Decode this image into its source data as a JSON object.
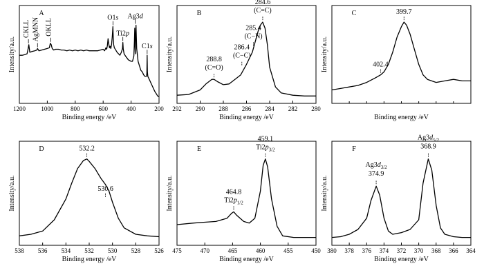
{
  "chart_data": [
    {
      "type": "line",
      "panel_label": "A",
      "xlabel": "Binding energy /eV",
      "ylabel": "Intensity/a.u.",
      "xlim": [
        1200,
        200
      ],
      "ylim": [
        0,
        100
      ],
      "xticks": [
        "1200",
        "1000",
        "800",
        "600",
        "400",
        "200"
      ],
      "series": [
        {
          "x": [
            1200,
            1180,
            1160,
            1145,
            1140,
            1132,
            1125,
            1110,
            1090,
            1075,
            1070,
            1060,
            1040,
            1020,
            1000,
            985,
            978,
            972,
            965,
            955,
            940,
            920,
            900,
            880,
            860,
            840,
            820,
            800,
            780,
            760,
            740,
            720,
            700,
            680,
            660,
            640,
            620,
            600,
            590,
            580,
            575,
            570,
            565,
            560,
            555,
            550,
            545,
            540,
            535,
            532,
            530,
            528,
            525,
            520,
            510,
            500,
            490,
            480,
            470,
            462,
            459,
            456,
            450,
            440,
            420,
            400,
            390,
            380,
            376,
            374,
            372,
            370,
            368,
            365,
            360,
            350,
            340,
            330,
            320,
            310,
            300,
            290,
            287,
            285,
            283,
            280,
            270,
            260,
            250,
            240,
            230,
            220,
            210,
            200
          ],
          "y": [
            56,
            56,
            57,
            58,
            62,
            70,
            60,
            61,
            62,
            63,
            65,
            62,
            63,
            64,
            65,
            66,
            72,
            70,
            65,
            63,
            64,
            64,
            63,
            63,
            62,
            63,
            62,
            63,
            62,
            63,
            62,
            63,
            62,
            62,
            62,
            62,
            63,
            64,
            62,
            66,
            64,
            69,
            78,
            71,
            66,
            68,
            65,
            70,
            80,
            88,
            94,
            82,
            70,
            66,
            63,
            60,
            58,
            56,
            60,
            65,
            73,
            64,
            58,
            55,
            50,
            48,
            48,
            55,
            75,
            92,
            70,
            58,
            80,
            96,
            65,
            48,
            42,
            36,
            34,
            30,
            28,
            28,
            32,
            56,
            34,
            28,
            24,
            20,
            16,
            12,
            8,
            5,
            2,
            1
          ]
        }
      ],
      "annotations": [
        {
          "text": "CKLL",
          "x": 1135,
          "y": 70
        },
        {
          "text": "AgMNN",
          "x": 1070,
          "y": 65
        },
        {
          "text": "OKLL",
          "x": 975,
          "y": 72
        },
        {
          "text": "O1",
          "italic": "s",
          "x": 530,
          "y": 94
        },
        {
          "text": "Ti2",
          "italic": "p",
          "x": 459,
          "y": 73
        },
        {
          "text": "Ag3",
          "italic": "d",
          "x": 370,
          "y": 96
        },
        {
          "text": "C1",
          "italic": "s",
          "x": 285,
          "y": 56
        }
      ]
    },
    {
      "type": "line",
      "panel_label": "B",
      "xlabel": "Binding energy /eV",
      "ylabel": "Intensity/a.u.",
      "xlim": [
        292,
        280
      ],
      "ylim": [
        0,
        100
      ],
      "xticks": [
        "292",
        "290",
        "288",
        "286",
        "284",
        "282",
        "280"
      ],
      "series": [
        {
          "x": [
            292,
            291,
            290,
            289.5,
            289,
            288.8,
            288.5,
            288,
            287.5,
            287,
            286.5,
            286,
            285.5,
            285,
            284.8,
            284.6,
            284.4,
            284.2,
            284,
            283.5,
            283,
            282,
            281,
            280
          ],
          "y": [
            3,
            4,
            10,
            18,
            24,
            24,
            21,
            17,
            18,
            24,
            30,
            44,
            60,
            88,
            96,
            100,
            92,
            70,
            40,
            14,
            6,
            3,
            2,
            2
          ]
        }
      ],
      "annotations": [
        {
          "text": "288.8",
          "sub": "(C=O)",
          "x": 288.8,
          "y": 24
        },
        {
          "text": "286.4",
          "sub": "(C−C)",
          "x": 286.4,
          "y": 40
        },
        {
          "text": "285.4",
          "sub": "(C−N)",
          "x": 285.4,
          "y": 66
        },
        {
          "text": "284.6",
          "sub": "(C=C)",
          "x": 284.6,
          "y": 100
        }
      ]
    },
    {
      "type": "line",
      "panel_label": "C",
      "xlabel": "Binding energy /eV",
      "ylabel": "Intensity/a.u.",
      "xlim": [
        408,
        392
      ],
      "ylim": [
        0,
        100
      ],
      "xticks": [],
      "series": [
        {
          "x": [
            408,
            407,
            406,
            405,
            404,
            403,
            402.4,
            402,
            401.5,
            401,
            400.5,
            400,
            399.7,
            399.4,
            399,
            398.5,
            398,
            397.5,
            397,
            396,
            395,
            394,
            393,
            392
          ],
          "y": [
            10,
            12,
            14,
            16,
            20,
            26,
            30,
            34,
            44,
            60,
            80,
            94,
            100,
            96,
            84,
            64,
            44,
            30,
            24,
            20,
            22,
            24,
            22,
            22
          ]
        }
      ],
      "annotations": [
        {
          "text": "402.4",
          "x": 402.4,
          "y": 30
        },
        {
          "text": "399.7",
          "x": 399.7,
          "y": 100
        }
      ]
    },
    {
      "type": "line",
      "panel_label": "D",
      "xlabel": "Binding energy /eV",
      "ylabel": "Intensity/a.u.",
      "xlim": [
        538,
        526
      ],
      "ylim": [
        0,
        100
      ],
      "xticks": [
        "538",
        "536",
        "534",
        "532",
        "530",
        "528",
        "526"
      ],
      "series": [
        {
          "x": [
            538,
            537,
            536,
            535,
            534,
            533.5,
            533,
            532.5,
            532.2,
            532,
            531.5,
            531,
            530.6,
            530.3,
            530,
            529.5,
            529,
            528,
            527,
            526
          ],
          "y": [
            4,
            6,
            10,
            24,
            50,
            70,
            88,
            98,
            100,
            97,
            88,
            76,
            68,
            60,
            46,
            26,
            14,
            6,
            4,
            3
          ]
        }
      ],
      "annotations": [
        {
          "text": "532.2",
          "x": 532.2,
          "y": 100
        },
        {
          "text": "530.6",
          "x": 530.6,
          "y": 50
        }
      ]
    },
    {
      "type": "line",
      "panel_label": "E",
      "xlabel": "Binding energy /eV",
      "ylabel": "Intensity/a.u.",
      "xlim": [
        475,
        450
      ],
      "ylim": [
        0,
        100
      ],
      "xticks": [
        "475",
        "470",
        "465",
        "460",
        "455",
        "450"
      ],
      "series": [
        {
          "x": [
            475,
            472,
            470,
            468,
            466,
            465.2,
            464.8,
            464.3,
            463,
            462,
            461,
            460,
            459.5,
            459.1,
            458.7,
            458,
            457,
            456,
            454,
            452,
            450
          ],
          "y": [
            18,
            20,
            21,
            22,
            26,
            32,
            34,
            30,
            22,
            20,
            26,
            60,
            92,
            100,
            90,
            50,
            16,
            4,
            2,
            2,
            2
          ]
        }
      ],
      "annotations": [
        {
          "text": "464.8",
          "sub": "Ti2",
          "italic": "p",
          "subscript": "1/2",
          "x": 464.8,
          "y": 34
        },
        {
          "text": "459.1",
          "sub": "Ti2",
          "italic": "p",
          "subscript": "3/2",
          "x": 459.1,
          "y": 100
        }
      ]
    },
    {
      "type": "line",
      "panel_label": "F",
      "xlabel": "Binding energy /eV",
      "ylabel": "Intensity/a.u.",
      "xlim": [
        380,
        364
      ],
      "ylim": [
        0,
        100
      ],
      "xticks": [
        "380",
        "378",
        "376",
        "374",
        "372",
        "370",
        "368",
        "366",
        "364"
      ],
      "series": [
        {
          "x": [
            380,
            379,
            378,
            377,
            376,
            375.5,
            374.9,
            374.5,
            374,
            373.5,
            373,
            372,
            371,
            370,
            369.5,
            368.9,
            368.5,
            368,
            367.5,
            367,
            366,
            365,
            364
          ],
          "y": [
            2,
            3,
            6,
            12,
            26,
            48,
            66,
            55,
            26,
            10,
            6,
            8,
            12,
            24,
            70,
            100,
            86,
            42,
            14,
            6,
            3,
            2,
            2
          ]
        }
      ],
      "annotations": [
        {
          "text": "Ag3",
          "italic": "d",
          "subscript": "3/2",
          "value": "374.9",
          "x": 374.9,
          "y": 66
        },
        {
          "text": "Ag3",
          "italic": "d",
          "subscript": "5/2",
          "value": "368.9",
          "x": 368.9,
          "y": 100
        }
      ]
    }
  ]
}
